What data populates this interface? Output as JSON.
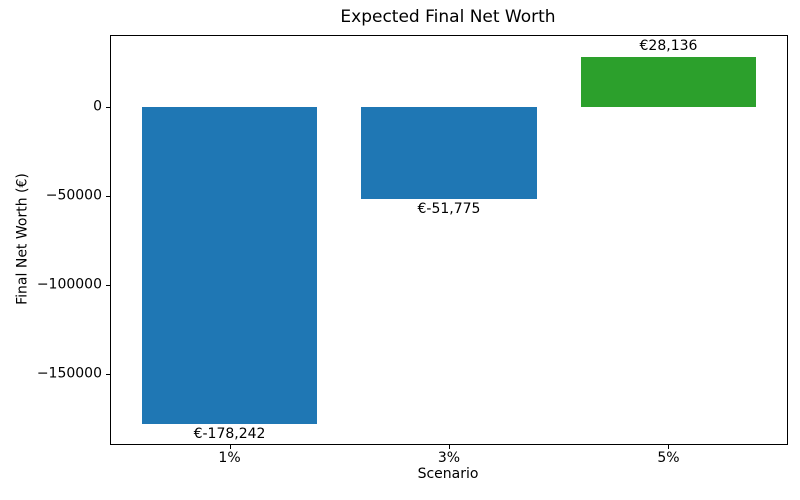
{
  "chart_data": {
    "type": "bar",
    "title": "Expected Final Net Worth",
    "xlabel": "Scenario",
    "ylabel": "Final Net Worth (€)",
    "categories": [
      "1%",
      "3%",
      "5%"
    ],
    "values": [
      -178242,
      -51775,
      28136
    ],
    "bar_labels": [
      "€-178,242",
      "€-51,775",
      "€28,136"
    ],
    "bar_colors": [
      "#1f77b4",
      "#1f77b4",
      "#2ca02c"
    ],
    "negative_color": "#1f77b4",
    "positive_color": "#2ca02c",
    "ylim": [
      -189300,
      39900
    ],
    "yticks": [
      0,
      -50000,
      -100000,
      -150000
    ],
    "ytick_labels": [
      "0",
      "−50000",
      "−100000",
      "−150000"
    ],
    "grid": false,
    "legend": "none"
  }
}
